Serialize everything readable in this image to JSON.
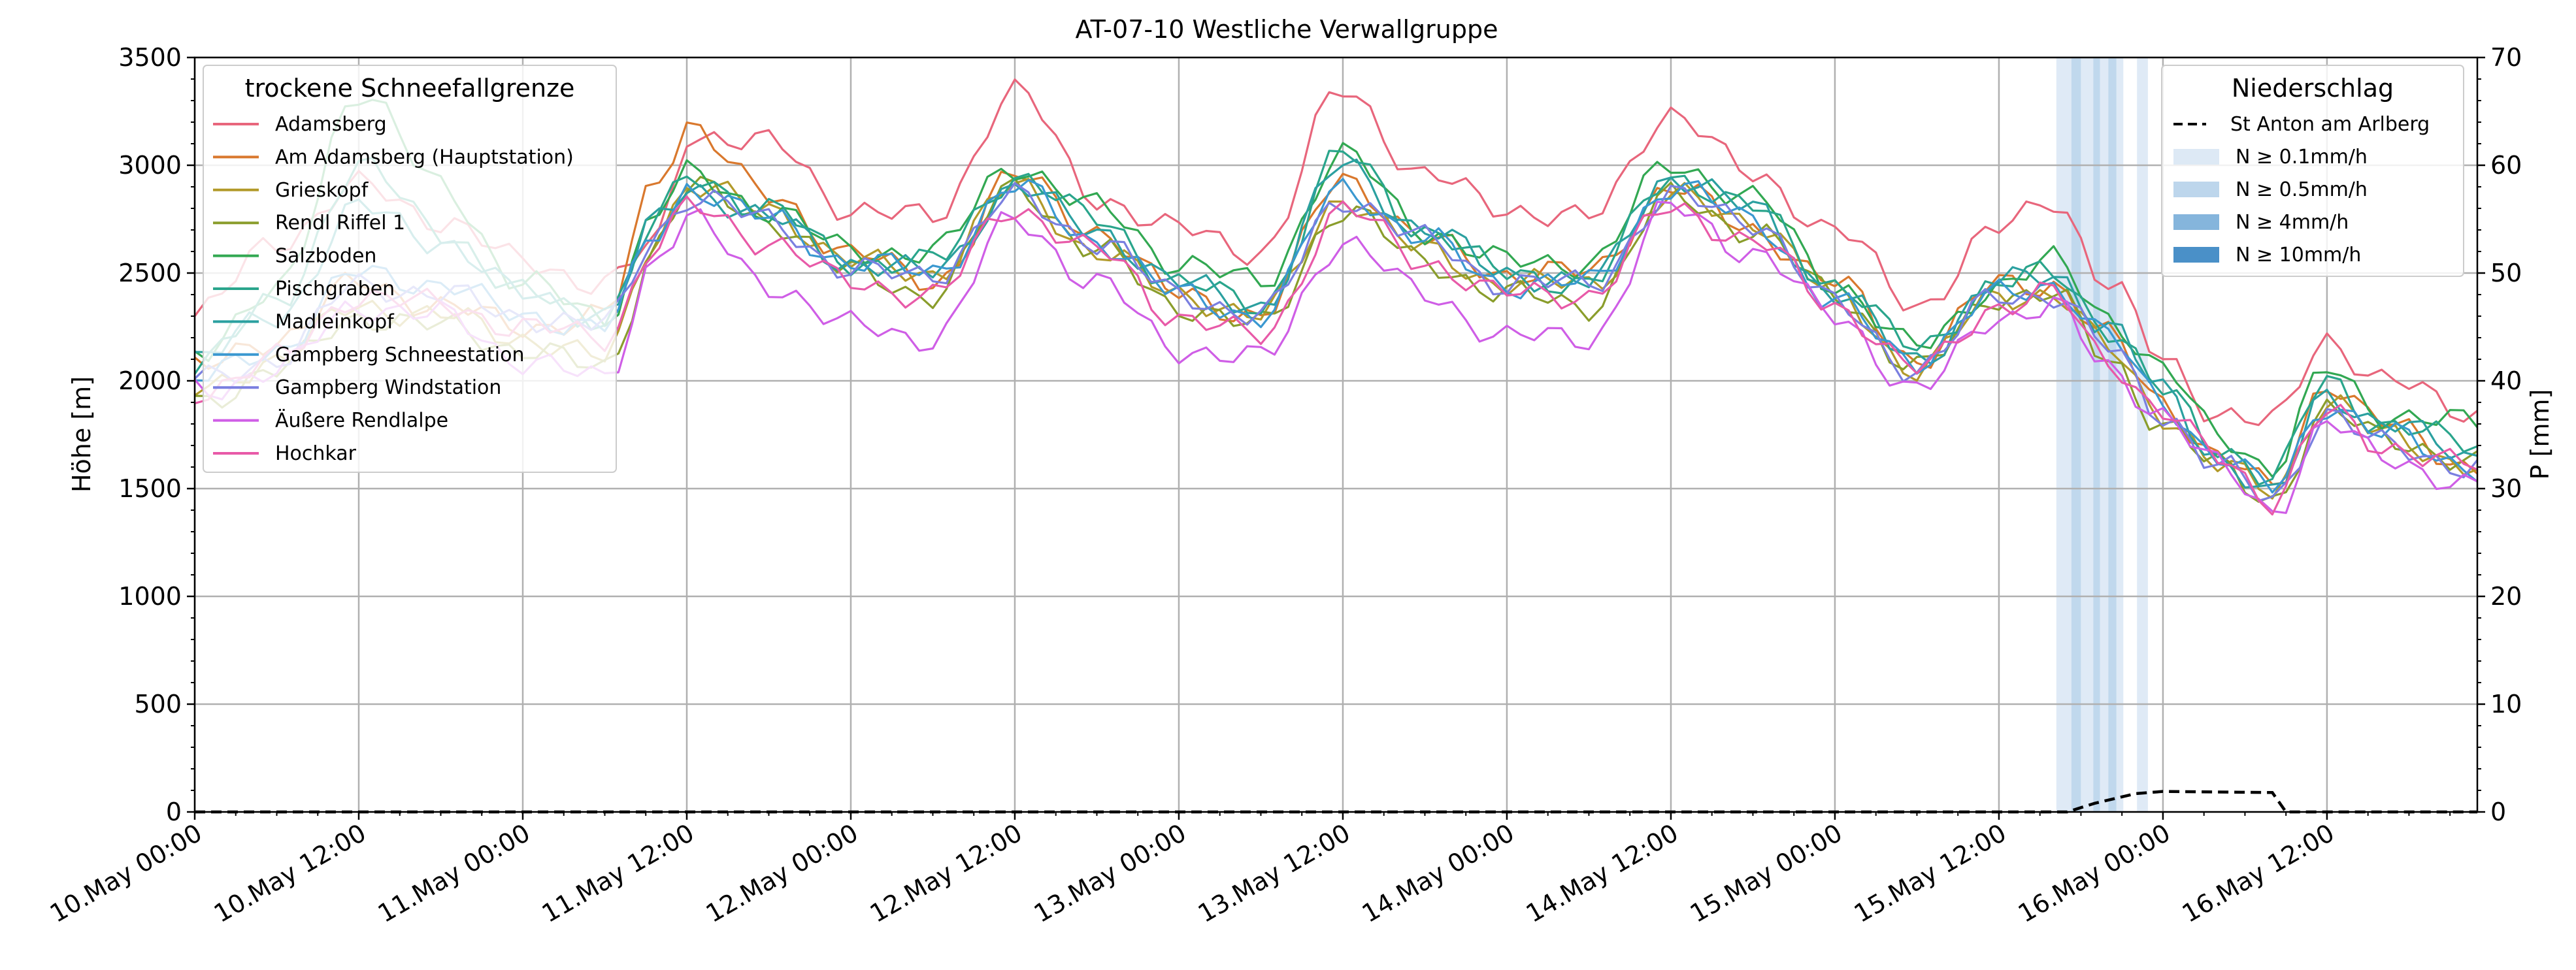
{
  "chart_data": {
    "type": "line",
    "title": "AT-07-10 Westliche Verwallgruppe",
    "ylabel": "Höhe [m]",
    "ylabel_right": "P [mm]",
    "ylim": [
      0,
      3500
    ],
    "ylim_right": [
      0,
      70
    ],
    "x_unit": "hours since 10.May 00:00",
    "xlim": [
      0,
      167
    ],
    "xticks": [
      {
        "t": 0,
        "label": "10.May 00:00"
      },
      {
        "t": 12,
        "label": "10.May 12:00"
      },
      {
        "t": 24,
        "label": "11.May 00:00"
      },
      {
        "t": 36,
        "label": "11.May 12:00"
      },
      {
        "t": 48,
        "label": "12.May 00:00"
      },
      {
        "t": 60,
        "label": "12.May 12:00"
      },
      {
        "t": 72,
        "label": "13.May 00:00"
      },
      {
        "t": 84,
        "label": "13.May 12:00"
      },
      {
        "t": 96,
        "label": "14.May 00:00"
      },
      {
        "t": 108,
        "label": "14.May 12:00"
      },
      {
        "t": 120,
        "label": "15.May 00:00"
      },
      {
        "t": 132,
        "label": "15.May 12:00"
      },
      {
        "t": 144,
        "label": "16.May 00:00"
      },
      {
        "t": 156,
        "label": "16.May 12:00"
      }
    ],
    "yticks": [
      0,
      500,
      1000,
      1500,
      2000,
      2500,
      3000,
      3500
    ],
    "yticks_right": [
      0,
      10,
      20,
      30,
      40,
      50,
      60,
      70
    ],
    "grid": true,
    "legend_left": {
      "title": "trockene Schneefallgrenze",
      "placement": "top-left"
    },
    "legend_right": {
      "title": "Niederschlag",
      "placement": "top-right",
      "line_label": "St Anton am Arlberg",
      "band_labels": [
        "N ≥ 0.1mm/h",
        "N ≥ 0.5mm/h",
        "N ≥ 4mm/h",
        "N ≥ 10mm/h"
      ],
      "band_colors": [
        "#dde9f5",
        "#bdd6ec",
        "#85b5dc",
        "#4a90c8"
      ]
    },
    "key_times": [
      0,
      6,
      12,
      18,
      24,
      30,
      34,
      36,
      42,
      48,
      54,
      60,
      66,
      72,
      78,
      84,
      90,
      96,
      102,
      108,
      114,
      120,
      126,
      132,
      136,
      140,
      144,
      148,
      152,
      156,
      160,
      167
    ],
    "series": [
      {
        "name": "Adamsberg",
        "color": "#e8667c",
        "key_values": [
          2300,
          2650,
          2900,
          2750,
          2550,
          2450,
          2650,
          3150,
          3100,
          2800,
          2750,
          3350,
          2850,
          2700,
          2600,
          3350,
          2950,
          2800,
          2750,
          3250,
          2950,
          2700,
          2350,
          2700,
          2850,
          2450,
          2100,
          1850,
          1800,
          2200,
          2000,
          1850
        ]
      },
      {
        "name": "Am Adamsberg (Hauptstation)",
        "color": "#d9782d",
        "key_values": [
          2050,
          2200,
          2450,
          2350,
          2250,
          2300,
          2950,
          3200,
          2850,
          2600,
          2450,
          2950,
          2700,
          2400,
          2300,
          2950,
          2650,
          2500,
          2500,
          2900,
          2700,
          2450,
          2100,
          2450,
          2450,
          2200,
          1900,
          1650,
          1500,
          2000,
          1800,
          1600
        ]
      },
      {
        "name": "Grieskopf",
        "color": "#b29a2a",
        "key_values": [
          1950,
          2100,
          2350,
          2300,
          2200,
          2100,
          2700,
          2900,
          2800,
          2550,
          2500,
          2900,
          2600,
          2400,
          2300,
          2850,
          2600,
          2450,
          2450,
          2850,
          2750,
          2400,
          2050,
          2400,
          2400,
          2150,
          1850,
          1600,
          1500,
          1900,
          1750,
          1600
        ]
      },
      {
        "name": "Rendl Riffel 1",
        "color": "#8a9d2b",
        "key_values": [
          1900,
          2050,
          2300,
          2250,
          2150,
          2050,
          2650,
          2900,
          2750,
          2500,
          2400,
          2900,
          2600,
          2350,
          2250,
          2800,
          2550,
          2400,
          2350,
          2850,
          2700,
          2400,
          2050,
          2400,
          2400,
          2100,
          1800,
          1600,
          1450,
          1850,
          1750,
          1600
        ]
      },
      {
        "name": "Salzboden",
        "color": "#32a852",
        "key_values": [
          2150,
          2400,
          3350,
          2900,
          2450,
          2300,
          2800,
          2950,
          2800,
          2600,
          2600,
          3000,
          2800,
          2550,
          2450,
          3050,
          2700,
          2550,
          2550,
          3000,
          2850,
          2450,
          2150,
          2450,
          2550,
          2300,
          2050,
          1750,
          1600,
          2050,
          1850,
          1800
        ]
      },
      {
        "name": "Pischgraben",
        "color": "#2aa58c",
        "key_values": [
          2100,
          2350,
          3000,
          2700,
          2400,
          2300,
          2750,
          2950,
          2800,
          2550,
          2550,
          2950,
          2750,
          2450,
          2350,
          3050,
          2700,
          2500,
          2450,
          2950,
          2800,
          2450,
          2150,
          2450,
          2500,
          2250,
          1950,
          1700,
          1550,
          2000,
          1800,
          1700
        ]
      },
      {
        "name": "Madleinkopf",
        "color": "#2ba0a0",
        "key_values": [
          2100,
          2300,
          2800,
          2650,
          2400,
          2300,
          2750,
          2900,
          2750,
          2550,
          2500,
          2900,
          2700,
          2450,
          2350,
          3000,
          2700,
          2500,
          2450,
          2950,
          2800,
          2400,
          2100,
          2450,
          2500,
          2250,
          1950,
          1650,
          1450,
          1950,
          1800,
          1650
        ]
      },
      {
        "name": "Gampberg Schneestation",
        "color": "#3a98d0",
        "key_values": [
          2000,
          2150,
          2500,
          2450,
          2300,
          2250,
          2700,
          2900,
          2750,
          2550,
          2500,
          2900,
          2650,
          2400,
          2300,
          2900,
          2650,
          2450,
          2450,
          2900,
          2750,
          2350,
          2100,
          2400,
          2450,
          2200,
          1900,
          1650,
          1500,
          1900,
          1750,
          1600
        ]
      },
      {
        "name": "Gampberg Windstation",
        "color": "#7a7fe0",
        "key_values": [
          2000,
          2100,
          2450,
          2400,
          2300,
          2250,
          2700,
          2850,
          2750,
          2500,
          2500,
          2850,
          2650,
          2400,
          2300,
          2850,
          2650,
          2450,
          2450,
          2850,
          2750,
          2350,
          2050,
          2400,
          2400,
          2150,
          1850,
          1600,
          1450,
          1850,
          1700,
          1600
        ]
      },
      {
        "name": "Äußere Rendlalpe",
        "color": "#cf5ee6",
        "key_values": [
          1950,
          2050,
          2350,
          2300,
          2100,
          2000,
          2600,
          2750,
          2450,
          2250,
          2200,
          2750,
          2450,
          2150,
          2100,
          2650,
          2400,
          2200,
          2200,
          2800,
          2600,
          2300,
          1950,
          2300,
          2350,
          2050,
          1850,
          1600,
          1400,
          1800,
          1650,
          1500
        ]
      },
      {
        "name": "Hochkar",
        "color": "#e85aa8",
        "key_values": [
          1950,
          2100,
          2400,
          2350,
          2250,
          2200,
          2650,
          2800,
          2650,
          2450,
          2400,
          2800,
          2600,
          2300,
          2200,
          2800,
          2550,
          2400,
          2400,
          2800,
          2650,
          2350,
          2050,
          2350,
          2400,
          2100,
          1850,
          1650,
          1450,
          1850,
          1700,
          1600
        ]
      }
    ],
    "precip_line": {
      "name": "St Anton am Arlberg",
      "points": [
        [
          0,
          0
        ],
        [
          137,
          0
        ],
        [
          139,
          0.8
        ],
        [
          142,
          1.7
        ],
        [
          144,
          1.9
        ],
        [
          152,
          1.8
        ],
        [
          153,
          0
        ],
        [
          167,
          0
        ]
      ]
    },
    "precip_bands": [
      {
        "start": 136.2,
        "end": 137.3,
        "level": 0
      },
      {
        "start": 137.3,
        "end": 138.0,
        "level": 1
      },
      {
        "start": 138.0,
        "end": 138.9,
        "level": 0
      },
      {
        "start": 138.9,
        "end": 139.4,
        "level": 1
      },
      {
        "start": 139.4,
        "end": 140.0,
        "level": 0
      },
      {
        "start": 140.0,
        "end": 140.6,
        "level": 1
      },
      {
        "start": 140.6,
        "end": 141.1,
        "level": 0
      },
      {
        "start": 142.1,
        "end": 142.9,
        "level": 0
      }
    ]
  }
}
